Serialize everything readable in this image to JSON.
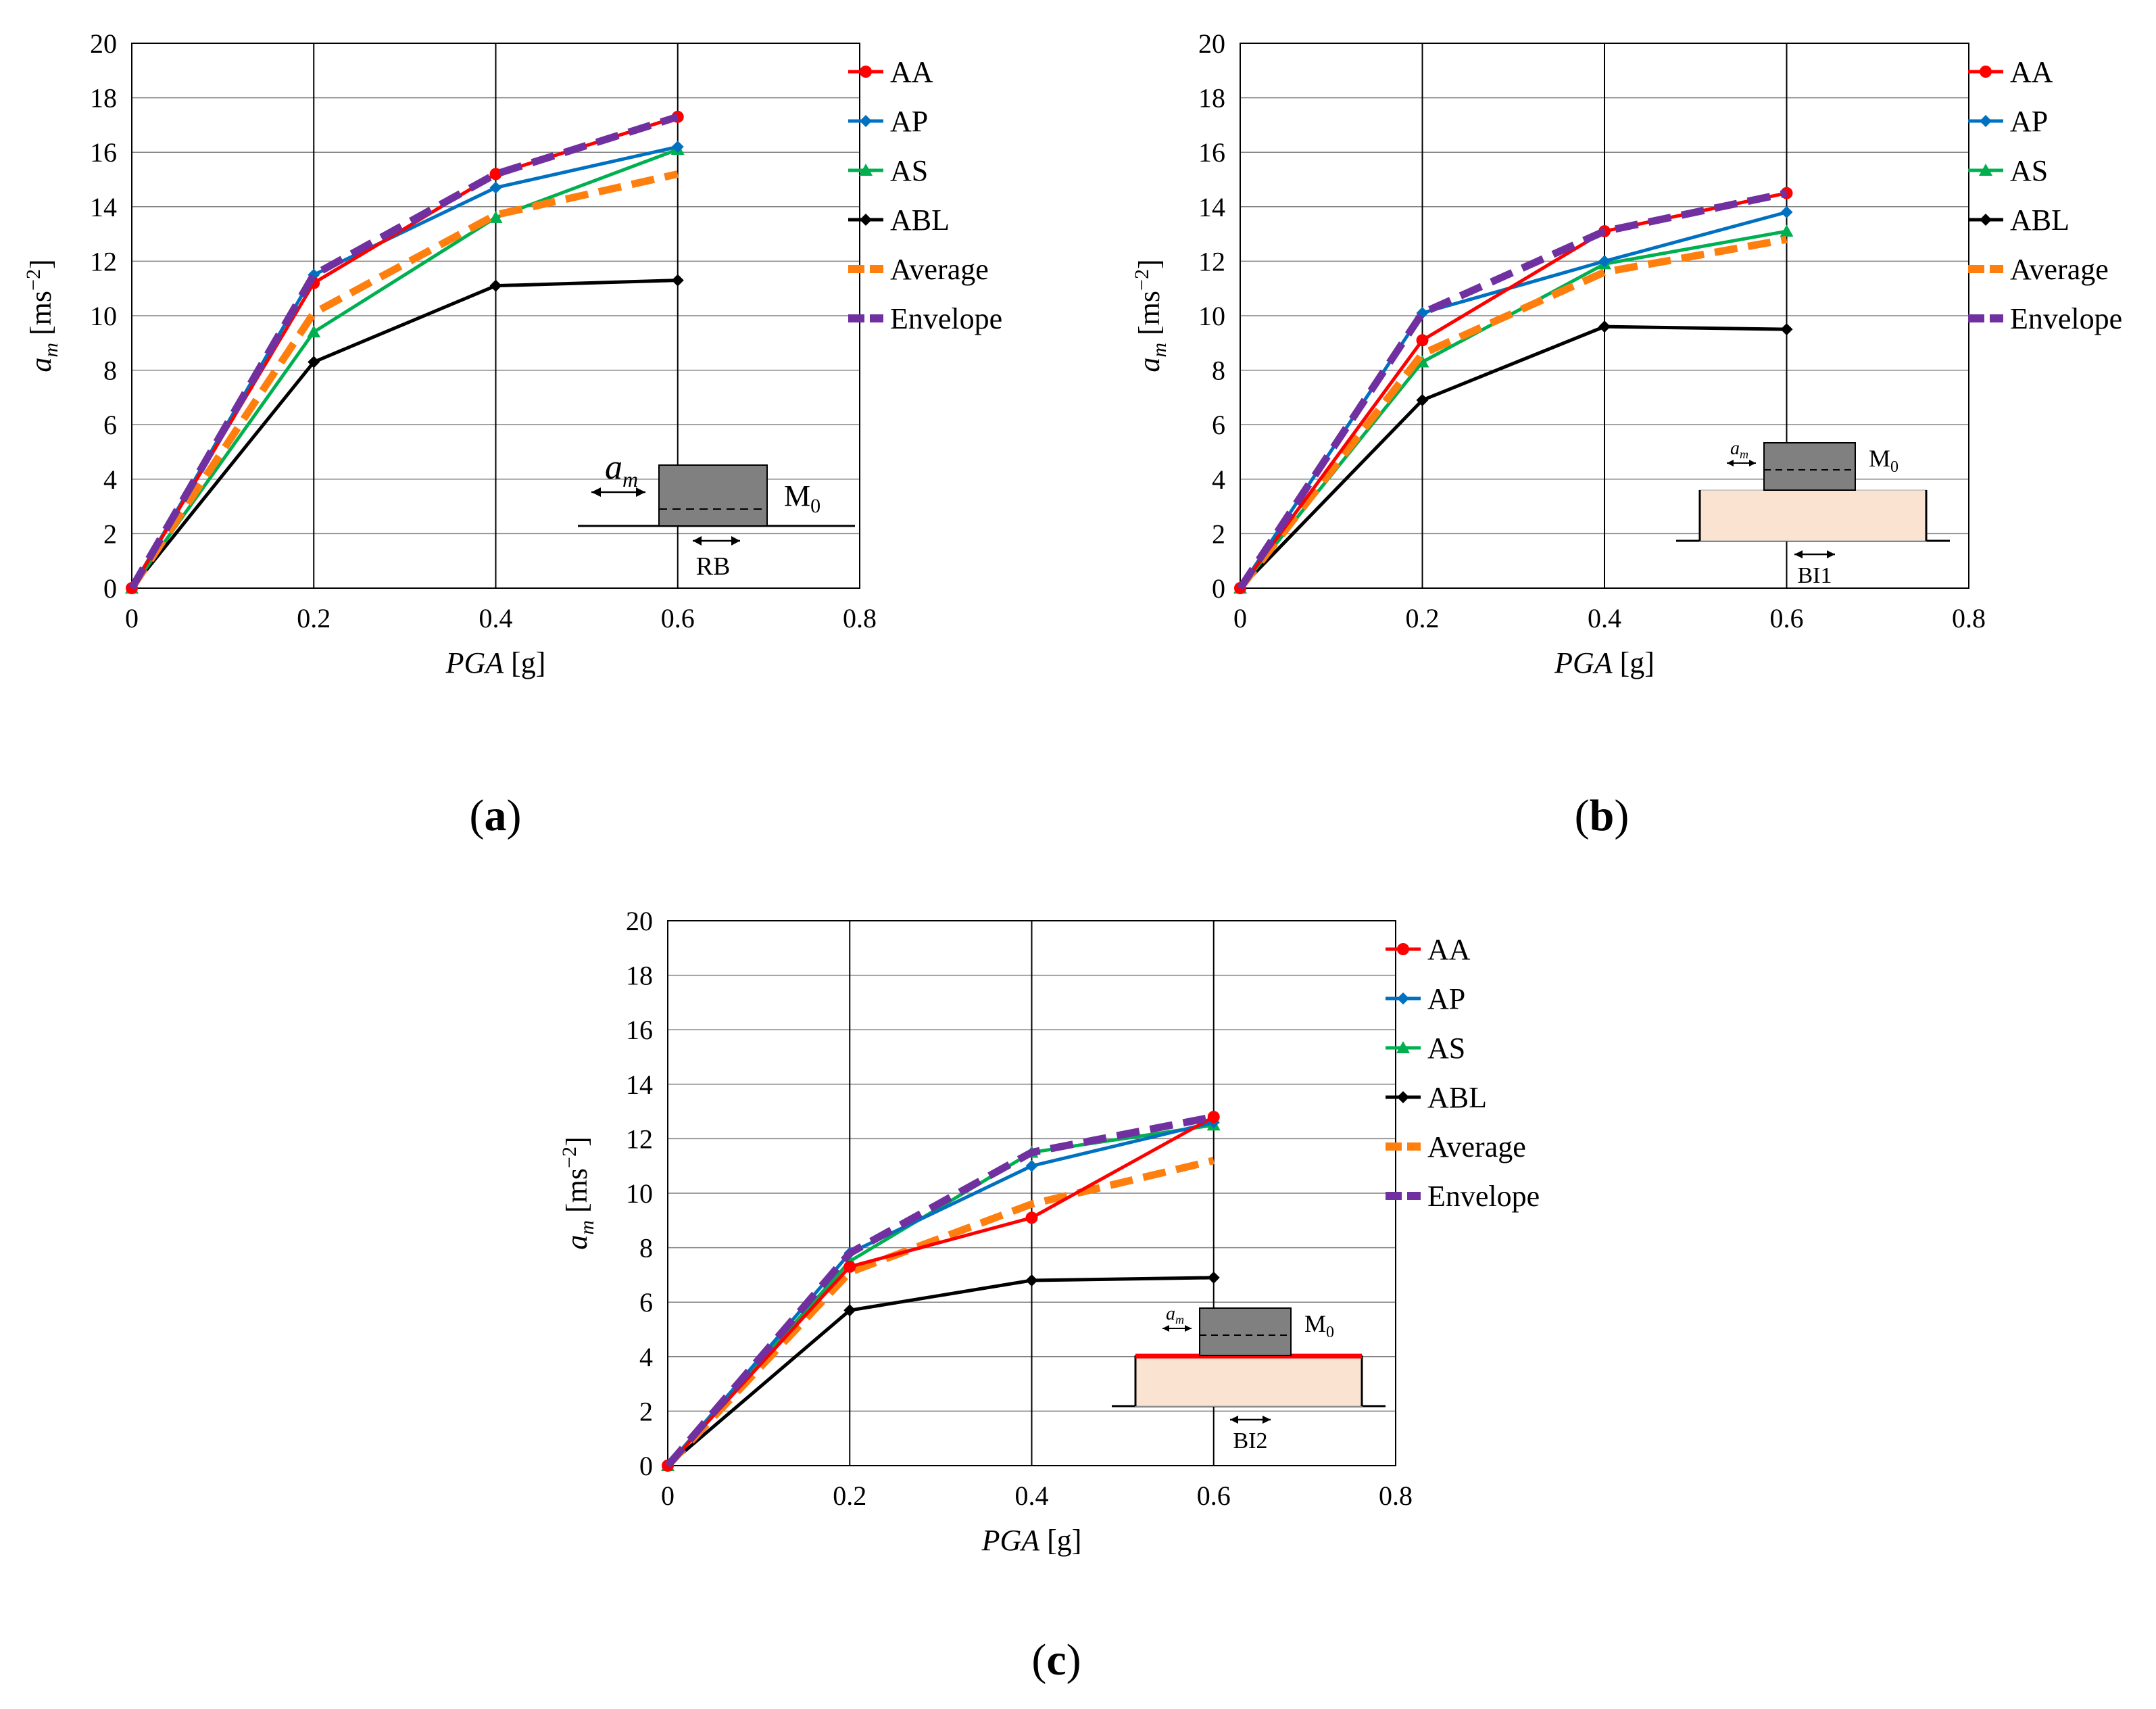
{
  "chart_data": [
    {
      "panel": "a",
      "type": "line",
      "caption": "(a)",
      "xlabel_var": "PGA",
      "xlabel_unit": " [g]",
      "ylabel_var": "a",
      "ylabel_sub": "m",
      "ylabel_unit": " [ms",
      "ylabel_exp": "−2",
      "ylabel_close": "]",
      "xlim": [
        0,
        0.8
      ],
      "ylim": [
        0,
        20
      ],
      "xticks": [
        "0",
        "0.2",
        "0.4",
        "0.6",
        "0.8"
      ],
      "yticks": [
        "0",
        "2",
        "4",
        "6",
        "8",
        "10",
        "12",
        "14",
        "16",
        "18",
        "20"
      ],
      "grid": true,
      "legend_position": "right",
      "x": [
        0,
        0.2,
        0.4,
        0.6
      ],
      "series": [
        {
          "name": "AA",
          "values": [
            0,
            11.2,
            15.2,
            17.3
          ]
        },
        {
          "name": "AP",
          "values": [
            0,
            11.5,
            14.7,
            16.2
          ]
        },
        {
          "name": "AS",
          "values": [
            0,
            9.4,
            13.6,
            16.1
          ]
        },
        {
          "name": "ABL",
          "values": [
            0,
            8.3,
            11.1,
            11.3
          ]
        },
        {
          "name": "Average",
          "values": [
            0,
            10.1,
            13.7,
            15.2
          ]
        },
        {
          "name": "Envelope",
          "values": [
            0,
            11.5,
            15.2,
            17.3
          ]
        }
      ],
      "inset": {
        "am_label": "a",
        "am_sub": "m",
        "mass_label": "M",
        "mass_sub": "0",
        "base_label": "RB"
      }
    },
    {
      "panel": "b",
      "type": "line",
      "caption": "(b)",
      "xlabel_var": "PGA",
      "xlabel_unit": " [g]",
      "ylabel_var": "a",
      "ylabel_sub": "m",
      "ylabel_unit": " [ms",
      "ylabel_exp": "−2",
      "ylabel_close": "]",
      "xlim": [
        0,
        0.8
      ],
      "ylim": [
        0,
        20
      ],
      "xticks": [
        "0",
        "0.2",
        "0.4",
        "0.6",
        "0.8"
      ],
      "yticks": [
        "0",
        "2",
        "4",
        "6",
        "8",
        "10",
        "12",
        "14",
        "16",
        "18",
        "20"
      ],
      "grid": true,
      "legend_position": "right",
      "x": [
        0,
        0.2,
        0.4,
        0.6
      ],
      "series": [
        {
          "name": "AA",
          "values": [
            0,
            9.1,
            13.1,
            14.5
          ]
        },
        {
          "name": "AP",
          "values": [
            0,
            10.1,
            12.0,
            13.8
          ]
        },
        {
          "name": "AS",
          "values": [
            0,
            8.3,
            11.9,
            13.1
          ]
        },
        {
          "name": "ABL",
          "values": [
            0,
            6.9,
            9.6,
            9.5
          ]
        },
        {
          "name": "Average",
          "values": [
            0,
            8.6,
            11.6,
            12.8
          ]
        },
        {
          "name": "Envelope",
          "values": [
            0,
            10.1,
            13.1,
            14.5
          ]
        }
      ],
      "inset": {
        "am_label": "a",
        "am_sub": "m",
        "mass_label": "M",
        "mass_sub": "0",
        "base_label": "BI1"
      }
    },
    {
      "panel": "c",
      "type": "line",
      "caption": "(c)",
      "xlabel_var": "PGA",
      "xlabel_unit": " [g]",
      "ylabel_var": "a",
      "ylabel_sub": "m",
      "ylabel_unit": " [ms",
      "ylabel_exp": "−2",
      "ylabel_close": "]",
      "xlim": [
        0,
        0.8
      ],
      "ylim": [
        0,
        20
      ],
      "xticks": [
        "0",
        "0.2",
        "0.4",
        "0.6",
        "0.8"
      ],
      "yticks": [
        "0",
        "2",
        "4",
        "6",
        "8",
        "10",
        "12",
        "14",
        "16",
        "18",
        "20"
      ],
      "grid": true,
      "legend_position": "right",
      "x": [
        0,
        0.2,
        0.4,
        0.6
      ],
      "series": [
        {
          "name": "AA",
          "values": [
            0,
            7.3,
            9.1,
            12.8
          ]
        },
        {
          "name": "AP",
          "values": [
            0,
            7.8,
            11.0,
            12.6
          ]
        },
        {
          "name": "AS",
          "values": [
            0,
            7.5,
            11.5,
            12.5
          ]
        },
        {
          "name": "ABL",
          "values": [
            0,
            5.7,
            6.8,
            6.9
          ]
        },
        {
          "name": "Average",
          "values": [
            0,
            7.1,
            9.6,
            11.2
          ]
        },
        {
          "name": "Envelope",
          "values": [
            0,
            7.8,
            11.5,
            12.8
          ]
        }
      ],
      "inset": {
        "am_label": "a",
        "am_sub": "m",
        "mass_label": "M",
        "mass_sub": "0",
        "base_label": "BI2"
      }
    }
  ],
  "series_styles": {
    "AA": {
      "color": "#ff0000",
      "marker": "circle",
      "dashed": false
    },
    "AP": {
      "color": "#0070c0",
      "marker": "diamond",
      "dashed": false
    },
    "AS": {
      "color": "#00b050",
      "marker": "triangle",
      "dashed": false
    },
    "ABL": {
      "color": "#000000",
      "marker": "diamond",
      "dashed": false
    },
    "Average": {
      "color": "#ff7f0e",
      "marker": "none",
      "dashed": true
    },
    "Envelope": {
      "color": "#7030a0",
      "marker": "none",
      "dashed": true
    }
  },
  "colors": {
    "grid": "#000000",
    "inset_block": "#808080",
    "inset_isolator": "#fbe3d2",
    "inset_interface": "#ff0000"
  }
}
